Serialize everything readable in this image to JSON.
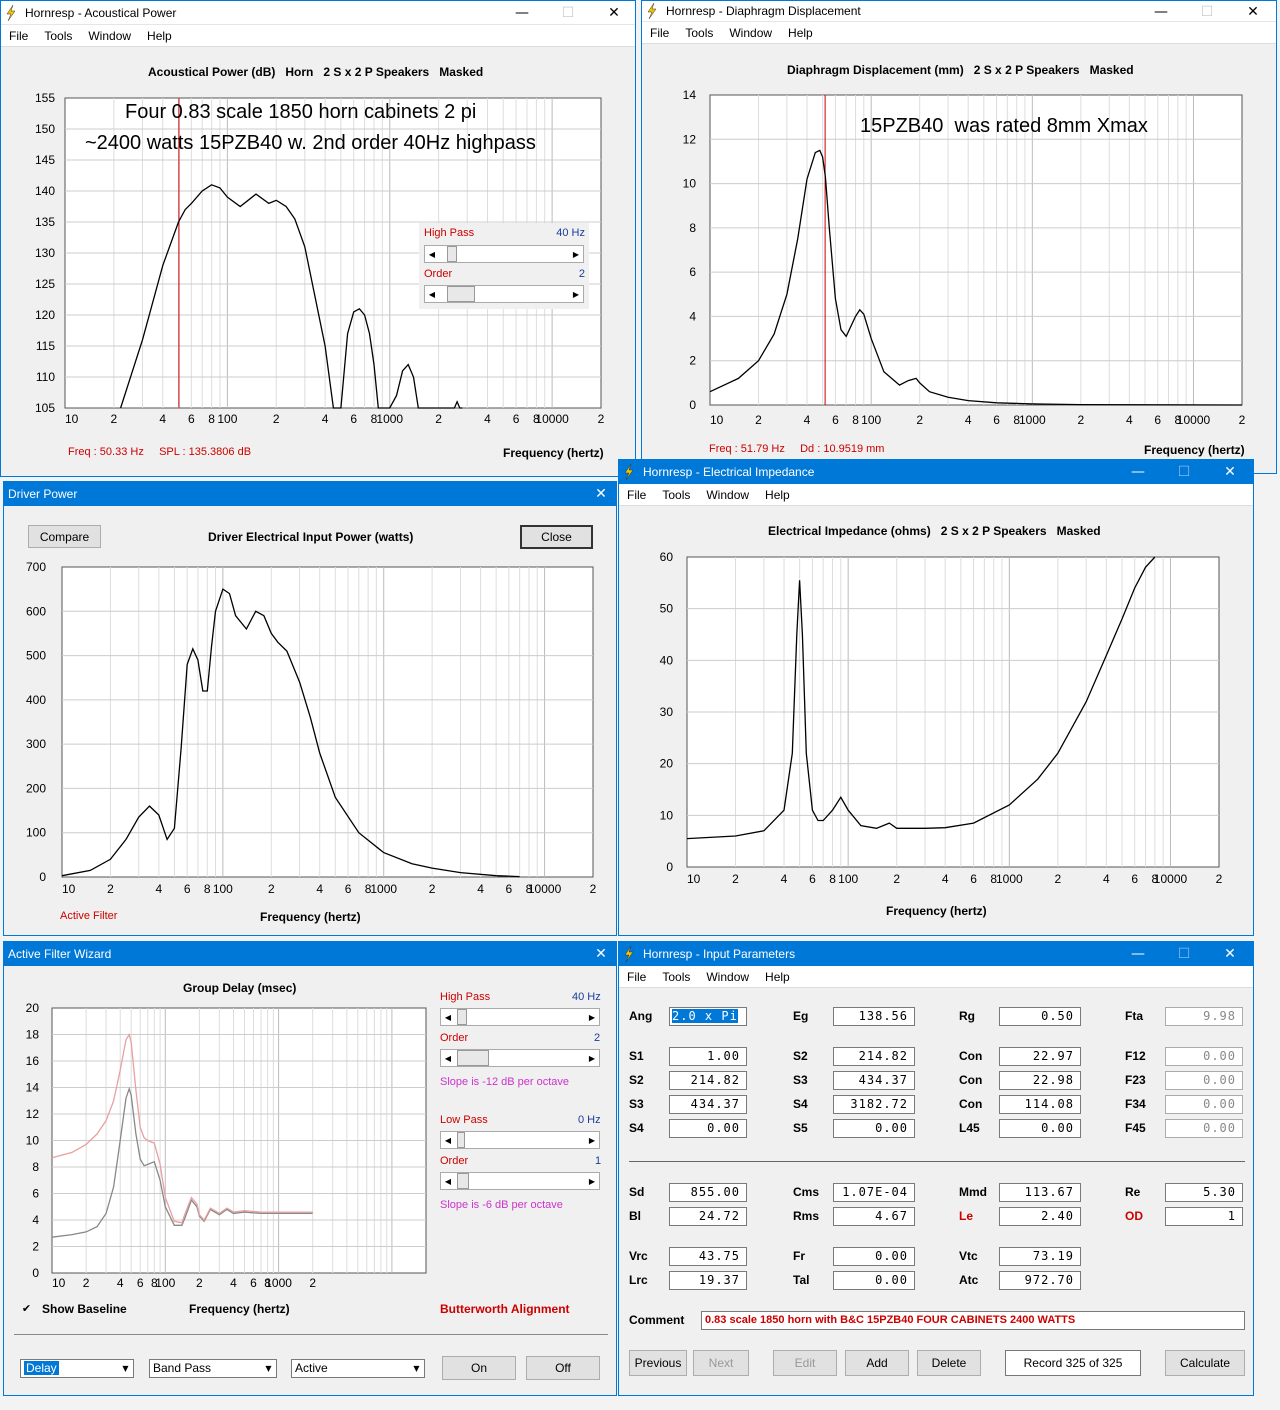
{
  "win_acoustic": {
    "title": "Hornresp - Acoustical Power",
    "menu": [
      "File",
      "Tools",
      "Window",
      "Help"
    ],
    "heading": "Acoustical Power (dB)   Horn   2 S x 2 P Speakers   Masked",
    "annotation_line1": "Four 0.83 scale 1850 horn cabinets 2 pi",
    "annotation_line2": "~2400 watts 15PZB40 w. 2nd order 40Hz highpass",
    "readout": "Freq : 50.33 Hz     SPL : 135.3806 dB",
    "xlabel": "Frequency (hertz)",
    "hp_label": "High Pass",
    "hp_value": "40 Hz",
    "order_label": "Order",
    "order_value": "2"
  },
  "win_disp": {
    "title": "Hornresp - Diaphragm Displacement",
    "menu": [
      "File",
      "Tools",
      "Window",
      "Help"
    ],
    "heading": "Diaphragm Displacement (mm)   2 S x 2 P Speakers   Masked",
    "annotation": "15PZB40  was rated 8mm Xmax",
    "readout": "Freq : 51.79 Hz     Dd : 10.9519 mm",
    "xlabel": "Frequency (hertz)"
  },
  "win_driver": {
    "title": "Driver Power",
    "heading": "Driver Electrical Input Power (watts)",
    "compare": "Compare",
    "close": "Close",
    "status": "Active Filter",
    "xlabel": "Frequency (hertz)"
  },
  "win_imp": {
    "title": "Hornresp - Electrical Impedance",
    "menu": [
      "File",
      "Tools",
      "Window",
      "Help"
    ],
    "heading": "Electrical Impedance (ohms)   2 S x 2 P Speakers   Masked",
    "xlabel": "Frequency (hertz)"
  },
  "win_filter": {
    "title": "Active Filter Wizard",
    "heading": "Group Delay (msec)",
    "xlabel": "Frequency (hertz)",
    "show_baseline": "Show Baseline",
    "alignment": "Butterworth Alignment",
    "hp_label": "High Pass",
    "hp_value": "40 Hz",
    "hp_order_label": "Order",
    "hp_order_value": "2",
    "hp_slope": "Slope is -12 dB per octave",
    "lp_label": "Low Pass",
    "lp_value": "0 Hz",
    "lp_order_label": "Order",
    "lp_order_value": "1",
    "lp_slope": "Slope is -6 dB per octave",
    "combo1": "Delay",
    "combo2": "Band Pass",
    "combo3": "Active",
    "on": "On",
    "off": "Off"
  },
  "win_input": {
    "title": "Hornresp - Input Parameters",
    "menu": [
      "File",
      "Tools",
      "Window",
      "Help"
    ],
    "params": {
      "Ang": "2.0 x Pi",
      "Eg": "138.56",
      "Rg": "0.50",
      "Fta": "9.98",
      "S1": "1.00",
      "S2a": "214.82",
      "Con1": "22.97",
      "F12": "0.00",
      "S2": "214.82",
      "S3a": "434.37",
      "Con2": "22.98",
      "F23": "0.00",
      "S3": "434.37",
      "S4a": "3182.72",
      "Con3": "114.08",
      "F34": "0.00",
      "S4": "0.00",
      "S5": "0.00",
      "L45": "0.00",
      "F45": "0.00",
      "Sd": "855.00",
      "Cms": "1.07E-04",
      "Mmd": "113.67",
      "Re": "5.30",
      "Bl": "24.72",
      "Rms": "4.67",
      "Le": "2.40",
      "OD": "1",
      "Vrc": "43.75",
      "Fr": "0.00",
      "Vtc": "73.19",
      "Lrc": "19.37",
      "Tal": "0.00",
      "Atc": "972.70"
    },
    "labels": {
      "Ang": "Ang",
      "Eg": "Eg",
      "Rg": "Rg",
      "Fta": "Fta",
      "S1": "S1",
      "S2": "S2",
      "S3": "S3",
      "S4": "S4",
      "S5": "S5",
      "Con": "Con",
      "L45": "L45",
      "F12": "F12",
      "F23": "F23",
      "F34": "F34",
      "F45": "F45",
      "Sd": "Sd",
      "Cms": "Cms",
      "Mmd": "Mmd",
      "Re": "Re",
      "Bl": "Bl",
      "Rms": "Rms",
      "Le": "Le",
      "OD": "OD",
      "Vrc": "Vrc",
      "Fr": "Fr",
      "Vtc": "Vtc",
      "Lrc": "Lrc",
      "Tal": "Tal",
      "Atc": "Atc",
      "Comment": "Comment"
    },
    "comment": "0.83 scale 1850 horn with B&C 15PZB40 FOUR CABINETS  2400 WATTS",
    "buttons": {
      "previous": "Previous",
      "next": "Next",
      "edit": "Edit",
      "add": "Add",
      "delete": "Delete",
      "record": "Record 325 of 325",
      "calculate": "Calculate"
    }
  },
  "chart_data": [
    {
      "type": "line",
      "title": "Acoustical Power (dB)",
      "xlabel": "Frequency (hertz)",
      "xscale": "log",
      "xlim": [
        10,
        20000
      ],
      "ylim": [
        105,
        155
      ],
      "x_ticks": [
        "10",
        "2",
        "4",
        "6",
        "8",
        "100",
        "2",
        "4",
        "6",
        "8",
        "1000",
        "2",
        "4",
        "6",
        "8",
        "10000",
        "2"
      ],
      "y_ticks": [
        105,
        110,
        115,
        120,
        125,
        130,
        135,
        140,
        145,
        150,
        155
      ],
      "cursor_x": 50.33,
      "series": [
        {
          "x": [
            22,
            30,
            40,
            50,
            55,
            60,
            70,
            80,
            90,
            100,
            120,
            150,
            180,
            200,
            230,
            260,
            300,
            340,
            400,
            450,
            500,
            550,
            600,
            650,
            700,
            750,
            800,
            850,
            900,
            1000,
            1100,
            1200,
            1300,
            1400,
            1500,
            1600,
            1700,
            1800,
            2000,
            2200,
            2300,
            2500,
            2600,
            2700,
            2800
          ],
          "y": [
            105,
            116,
            128,
            135,
            137,
            138,
            140,
            141,
            140.5,
            139,
            137.5,
            139.5,
            138,
            138.5,
            137.5,
            135.5,
            131,
            124,
            115,
            105,
            105,
            117,
            120.5,
            121,
            120,
            117,
            112,
            105,
            105,
            105,
            107,
            111,
            112,
            110,
            105,
            105,
            105,
            105,
            105,
            105,
            105,
            105,
            106,
            105,
            105
          ]
        }
      ]
    },
    {
      "type": "line",
      "title": "Diaphragm Displacement (mm)",
      "xlabel": "Frequency (hertz)",
      "xscale": "log",
      "xlim": [
        10,
        20000
      ],
      "ylim": [
        0,
        14
      ],
      "x_ticks": [
        "10",
        "2",
        "4",
        "6",
        "8",
        "100",
        "2",
        "4",
        "6",
        "8",
        "1000",
        "2",
        "4",
        "6",
        "8",
        "10000",
        "2"
      ],
      "y_ticks": [
        0,
        2,
        4,
        6,
        8,
        10,
        12,
        14
      ],
      "cursor_x": 51.79,
      "series": [
        {
          "x": [
            10,
            15,
            20,
            25,
            30,
            35,
            40,
            45,
            48,
            50,
            52,
            55,
            60,
            65,
            70,
            80,
            85,
            90,
            100,
            120,
            150,
            170,
            190,
            200,
            230,
            300,
            400,
            600,
            1000,
            2000,
            5000,
            20000
          ],
          "y": [
            0.6,
            1.2,
            2.0,
            3.2,
            5.0,
            7.5,
            10.2,
            11.4,
            11.5,
            11.2,
            10.3,
            8.0,
            4.8,
            3.4,
            3.1,
            4.0,
            4.3,
            4.1,
            3.0,
            1.5,
            0.9,
            1.1,
            1.2,
            1.0,
            0.6,
            0.35,
            0.2,
            0.1,
            0.05,
            0.02,
            0.01,
            0
          ]
        }
      ]
    },
    {
      "type": "line",
      "title": "Driver Electrical Input Power (watts)",
      "xlabel": "Frequency (hertz)",
      "xscale": "log",
      "xlim": [
        10,
        20000
      ],
      "ylim": [
        0,
        700
      ],
      "x_ticks": [
        "10",
        "2",
        "4",
        "6",
        "8",
        "100",
        "2",
        "4",
        "6",
        "8",
        "1000",
        "2",
        "4",
        "6",
        "8",
        "10000",
        "2"
      ],
      "y_ticks": [
        0,
        100,
        200,
        300,
        400,
        500,
        600,
        700
      ],
      "series": [
        {
          "x": [
            10,
            15,
            20,
            25,
            30,
            35,
            40,
            45,
            50,
            55,
            60,
            65,
            70,
            75,
            80,
            85,
            90,
            100,
            110,
            120,
            140,
            160,
            180,
            200,
            220,
            250,
            300,
            350,
            400,
            500,
            700,
            1000,
            1500,
            2000,
            3000,
            5000,
            7000
          ],
          "y": [
            3,
            15,
            40,
            85,
            135,
            160,
            140,
            85,
            110,
            290,
            480,
            515,
            490,
            420,
            420,
            520,
            600,
            650,
            640,
            590,
            560,
            600,
            590,
            550,
            530,
            510,
            440,
            360,
            280,
            180,
            100,
            55,
            30,
            20,
            10,
            3,
            1
          ]
        }
      ]
    },
    {
      "type": "line",
      "title": "Electrical Impedance (ohms)",
      "xlabel": "Frequency (hertz)",
      "xscale": "log",
      "xlim": [
        10,
        20000
      ],
      "ylim": [
        0,
        60
      ],
      "x_ticks": [
        "10",
        "2",
        "4",
        "6",
        "8",
        "100",
        "2",
        "4",
        "6",
        "8",
        "1000",
        "2",
        "4",
        "6",
        "8",
        "10000",
        "2"
      ],
      "y_ticks": [
        0,
        10,
        20,
        30,
        40,
        50,
        60
      ],
      "series": [
        {
          "x": [
            10,
            20,
            30,
            40,
            45,
            48,
            50,
            52,
            55,
            60,
            65,
            70,
            80,
            90,
            100,
            120,
            150,
            180,
            200,
            250,
            300,
            400,
            600,
            1000,
            1500,
            2000,
            3000,
            4000,
            5000,
            6000,
            7000,
            8000
          ],
          "y": [
            5.5,
            6,
            7,
            11,
            22,
            45,
            55.5,
            45,
            22,
            11,
            9,
            9,
            11,
            13.5,
            11,
            8,
            7.5,
            8.5,
            7.5,
            7.5,
            7.5,
            7.6,
            8.5,
            12,
            17,
            22,
            32,
            41,
            48,
            54,
            58,
            61
          ]
        }
      ]
    },
    {
      "type": "line",
      "title": "Group Delay (msec)",
      "xlabel": "Frequency (hertz)",
      "xscale": "log",
      "xlim": [
        10,
        20000
      ],
      "ylim": [
        0,
        20
      ],
      "x_ticks": [
        "10",
        "2",
        "4",
        "6",
        "8",
        "100",
        "2",
        "4",
        "6",
        "8",
        "1000",
        "2"
      ],
      "y_ticks": [
        0,
        2,
        4,
        6,
        8,
        10,
        12,
        14,
        16,
        18,
        20
      ],
      "series": [
        {
          "color": "#888888",
          "x": [
            10,
            15,
            20,
            25,
            30,
            35,
            40,
            45,
            48,
            50,
            55,
            60,
            65,
            70,
            80,
            90,
            100,
            120,
            140,
            150,
            170,
            190,
            200,
            220,
            250,
            300,
            350,
            400,
            500,
            700,
            1000,
            1500,
            2000
          ],
          "y": [
            2.7,
            2.9,
            3.1,
            3.5,
            4.5,
            6.5,
            10,
            13.2,
            13.9,
            13.4,
            10.5,
            8.6,
            8.1,
            8.2,
            8.4,
            7.0,
            5.0,
            3.6,
            3.6,
            4.2,
            5.5,
            5.0,
            4.3,
            3.9,
            4.8,
            4.4,
            4.8,
            4.5,
            4.6,
            4.5,
            4.5,
            4.5,
            4.5
          ]
        },
        {
          "color": "#e8a0a0",
          "x": [
            10,
            15,
            20,
            25,
            30,
            35,
            40,
            45,
            48,
            50,
            55,
            60,
            65,
            70,
            80,
            90,
            100,
            120,
            140,
            150,
            170,
            190,
            200,
            220,
            250,
            300,
            350,
            400,
            500,
            700,
            1000,
            1500,
            2000
          ],
          "y": [
            8.7,
            9.1,
            9.7,
            10.5,
            11.5,
            13,
            15.3,
            17.6,
            18,
            17.4,
            13.8,
            11.0,
            10.2,
            10.0,
            9.8,
            8.2,
            5.7,
            3.9,
            3.8,
            4.5,
            5.7,
            5.2,
            4.4,
            4.0,
            4.9,
            4.5,
            4.9,
            4.6,
            4.7,
            4.6,
            4.6,
            4.6,
            4.6
          ]
        }
      ]
    }
  ]
}
